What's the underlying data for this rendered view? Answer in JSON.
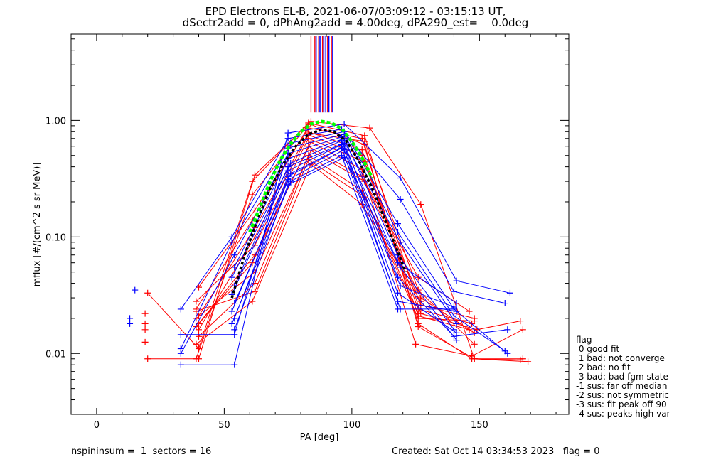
{
  "title_line1": "EPD Electrons EL-B, 2021-06-07/03:09:12 - 03:15:13 UT,",
  "title_line2": "dSectr2add = 0, dPhAng2add = 4.00deg, dPA290_est=    0.0deg",
  "footer_left": "nspininsum =  1  sectors = 16",
  "footer_right": "Created: Sat Oct 14 03:34:53 2023   flag = 0",
  "legend": {
    "title": "flag",
    "items": [
      " 0 good fit",
      " 1 bad: not converge",
      " 2 bad: no fit",
      " 3 bad: bad fgm state",
      "-1 sus: far off median",
      "-2 sus: not symmetric",
      "-3 sus: fit peak off 90",
      "-4 sus: peaks high var"
    ]
  },
  "colors": {
    "red": "#ff0000",
    "blue": "#0000ff",
    "fit": "#00ff00",
    "median": "#000000",
    "peak_marker_red": "#ff0000",
    "peak_marker_blue": "#0000ff"
  },
  "chart_data": {
    "type": "line",
    "xlabel": "PA [deg]",
    "ylabel": "mflux [#/(cm^2 s sr MeV)]",
    "xlim": [
      -10,
      185
    ],
    "ylim": [
      0.003,
      5.5
    ],
    "yscale": "log",
    "x_ticks": [
      0,
      50,
      100,
      150
    ],
    "y_ticks": [
      {
        "v": 0.01,
        "label": "0.01"
      },
      {
        "v": 0.1,
        "label": "0.10"
      },
      {
        "v": 1.0,
        "label": "1.00"
      }
    ],
    "peak_markers": {
      "red": [
        84,
        85.5,
        87,
        88.5,
        90.5,
        92
      ],
      "blue": [
        86,
        87.5,
        89,
        89.8,
        91,
        92.5
      ]
    },
    "series": [
      {
        "color": "red",
        "x": [
          20,
          40,
          62,
          84,
          107,
          127,
          148,
          167
        ],
        "y": [
          0.009,
          0.009,
          0.34,
          0.98,
          0.86,
          0.19,
          0.009,
          0.009
        ]
      },
      {
        "color": "red",
        "x": [
          20,
          40,
          61,
          83,
          105,
          127,
          149,
          166
        ],
        "y": [
          0.033,
          0.011,
          0.3,
          0.95,
          0.74,
          0.022,
          0.016,
          0.019
        ]
      },
      {
        "color": "red",
        "x": [
          39,
          61,
          82,
          104,
          126,
          147,
          169
        ],
        "y": [
          0.009,
          0.23,
          0.87,
          0.7,
          0.018,
          0.009,
          0.0085
        ]
      },
      {
        "color": "red",
        "x": [
          40,
          62,
          84,
          105,
          126,
          148,
          166
        ],
        "y": [
          0.037,
          0.17,
          0.92,
          0.62,
          0.017,
          0.009,
          0.0088
        ]
      },
      {
        "color": "red",
        "x": [
          39,
          61,
          82,
          104,
          126,
          146
        ],
        "y": [
          0.024,
          0.14,
          0.81,
          0.56,
          0.021,
          0.016
        ]
      },
      {
        "color": "red",
        "x": [
          40,
          62,
          83,
          104,
          126,
          147
        ],
        "y": [
          0.016,
          0.1,
          0.75,
          0.5,
          0.024,
          0.018
        ]
      },
      {
        "color": "red",
        "x": [
          39,
          62,
          83,
          105,
          127,
          148
        ],
        "y": [
          0.028,
          0.085,
          0.7,
          0.44,
          0.026,
          0.02
        ]
      },
      {
        "color": "red",
        "x": [
          39,
          62,
          84,
          104,
          125,
          147,
          167
        ],
        "y": [
          0.017,
          0.07,
          0.65,
          0.38,
          0.012,
          0.0095,
          0.016
        ]
      },
      {
        "color": "red",
        "x": [
          40,
          61,
          83,
          104,
          126,
          146
        ],
        "y": [
          0.018,
          0.06,
          0.6,
          0.33,
          0.045,
          0.023
        ]
      },
      {
        "color": "red",
        "x": [
          39,
          62,
          84,
          105,
          127,
          148
        ],
        "y": [
          0.02,
          0.05,
          0.55,
          0.3,
          0.03,
          0.015
        ]
      },
      {
        "color": "red",
        "x": [
          40,
          62,
          83,
          104,
          126
        ],
        "y": [
          0.014,
          0.04,
          0.5,
          0.25,
          0.022
        ]
      },
      {
        "color": "red",
        "x": [
          39,
          62,
          83,
          105,
          126,
          148
        ],
        "y": [
          0.023,
          0.034,
          0.46,
          0.22,
          0.02,
          0.019
        ]
      },
      {
        "color": "red",
        "x": [
          39,
          61,
          84,
          104,
          127
        ],
        "y": [
          0.012,
          0.028,
          0.42,
          0.19,
          0.028
        ]
      },
      {
        "color": "red",
        "x": [
          40,
          62,
          83,
          105,
          126,
          148
        ],
        "y": [
          0.021,
          0.12,
          0.78,
          0.66,
          0.035,
          0.012
        ]
      },
      {
        "color": "blue",
        "x": [
          33,
          54,
          75,
          97,
          119,
          141,
          162
        ],
        "y": [
          0.008,
          0.008,
          0.78,
          0.93,
          0.32,
          0.042,
          0.033
        ]
      },
      {
        "color": "blue",
        "x": [
          33,
          53,
          75,
          96,
          119,
          140,
          160
        ],
        "y": [
          0.024,
          0.1,
          0.7,
          0.84,
          0.21,
          0.034,
          0.027
        ]
      },
      {
        "color": "blue",
        "x": [
          33,
          54,
          76,
          97,
          118,
          140,
          161
        ],
        "y": [
          0.0145,
          0.0145,
          0.64,
          0.8,
          0.13,
          0.024,
          0.01
        ]
      },
      {
        "color": "blue",
        "x": [
          33,
          53,
          75,
          97,
          118,
          140,
          160
        ],
        "y": [
          0.011,
          0.09,
          0.58,
          0.76,
          0.11,
          0.021,
          0.0105
        ]
      },
      {
        "color": "blue",
        "x": [
          33,
          54,
          75,
          96,
          119,
          141
        ],
        "y": [
          0.01,
          0.07,
          0.52,
          0.72,
          0.09,
          0.018
        ]
      },
      {
        "color": "blue",
        "x": [
          54,
          75,
          97,
          118,
          140
        ],
        "y": [
          0.055,
          0.47,
          0.7,
          0.07,
          0.016
        ]
      },
      {
        "color": "blue",
        "x": [
          53,
          76,
          96,
          119,
          141
        ],
        "y": [
          0.045,
          0.43,
          0.67,
          0.055,
          0.013
        ]
      },
      {
        "color": "blue",
        "x": [
          54,
          75,
          97,
          118,
          140,
          161
        ],
        "y": [
          0.038,
          0.4,
          0.64,
          0.045,
          0.014,
          0.016
        ]
      },
      {
        "color": "blue",
        "x": [
          53,
          75,
          96,
          119,
          140
        ],
        "y": [
          0.032,
          0.37,
          0.62,
          0.038,
          0.025
        ]
      },
      {
        "color": "blue",
        "x": [
          54,
          76,
          97,
          118,
          141
        ],
        "y": [
          0.027,
          0.35,
          0.6,
          0.033,
          0.015
        ]
      },
      {
        "color": "blue",
        "x": [
          53,
          75,
          96,
          118,
          141
        ],
        "y": [
          0.023,
          0.33,
          0.58,
          0.028,
          0.023
        ]
      },
      {
        "color": "blue",
        "x": [
          54,
          75,
          97,
          119,
          140
        ],
        "y": [
          0.02,
          0.31,
          0.56,
          0.024,
          0.024
        ]
      },
      {
        "color": "blue",
        "x": [
          53,
          76,
          96,
          118
        ],
        "y": [
          0.018,
          0.3,
          0.5,
          0.024
        ]
      },
      {
        "color": "blue",
        "x": [
          54,
          75,
          97,
          118,
          141
        ],
        "y": [
          0.016,
          0.28,
          0.48,
          0.06,
          0.027
        ]
      }
    ],
    "isolated_points": [
      {
        "color": "blue",
        "x": 13,
        "y": 0.02
      },
      {
        "color": "blue",
        "x": 13,
        "y": 0.018
      },
      {
        "color": "blue",
        "x": 15,
        "y": 0.035
      },
      {
        "color": "red",
        "x": 19,
        "y": 0.022
      },
      {
        "color": "red",
        "x": 19,
        "y": 0.018
      },
      {
        "color": "red",
        "x": 19,
        "y": 0.016
      },
      {
        "color": "red",
        "x": 19,
        "y": 0.0125
      }
    ],
    "fit_curve": {
      "x": [
        60,
        64,
        68,
        72,
        76,
        80,
        84,
        88,
        92,
        96,
        100,
        104,
        108
      ],
      "y": [
        0.11,
        0.18,
        0.3,
        0.46,
        0.63,
        0.8,
        0.93,
        0.98,
        0.95,
        0.85,
        0.66,
        0.48,
        0.32
      ]
    },
    "median_curve": {
      "x": [
        53,
        58,
        63,
        68,
        73,
        78,
        83,
        88,
        93,
        98,
        103,
        108,
        113,
        118,
        121
      ],
      "y": [
        0.03,
        0.07,
        0.14,
        0.26,
        0.42,
        0.6,
        0.76,
        0.83,
        0.8,
        0.66,
        0.44,
        0.26,
        0.14,
        0.075,
        0.05
      ]
    }
  }
}
